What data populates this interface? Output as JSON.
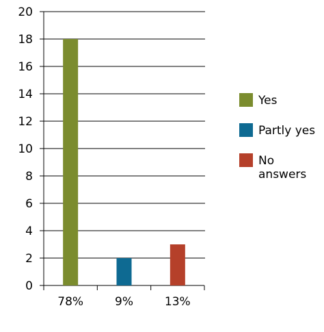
{
  "chart_data": {
    "type": "bar",
    "categories": [
      "78%",
      "9%",
      "13%"
    ],
    "series": [
      {
        "name": "Yes",
        "values": [
          18,
          null,
          null
        ],
        "color": "#7b8c2e"
      },
      {
        "name": "Partly yes",
        "values": [
          null,
          2,
          null
        ],
        "color": "#0e6a92"
      },
      {
        "name": "No answers",
        "values": [
          null,
          null,
          3
        ],
        "color": "#b5402a"
      }
    ],
    "ylim": [
      0,
      20
    ],
    "yticks": [
      0,
      2,
      4,
      6,
      8,
      10,
      12,
      14,
      16,
      18,
      20
    ],
    "grid": true,
    "legend": {
      "position": "right",
      "items": [
        {
          "label_lines": [
            "Yes"
          ],
          "color": "#7b8c2e"
        },
        {
          "label_lines": [
            "Partly yes"
          ],
          "color": "#0e6a92"
        },
        {
          "label_lines": [
            "No",
            "answers"
          ],
          "color": "#b5402a"
        }
      ]
    }
  }
}
